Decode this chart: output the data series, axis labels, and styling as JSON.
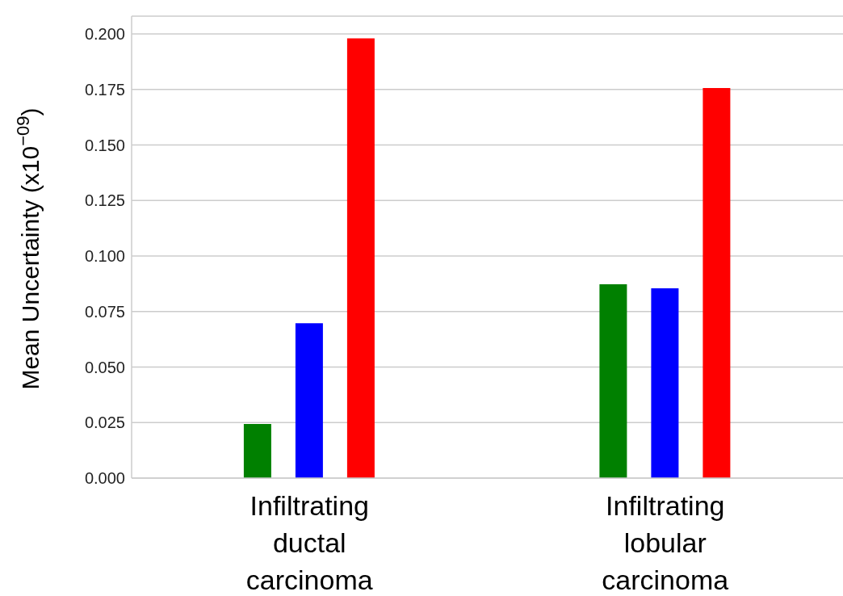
{
  "chart_data": {
    "type": "bar",
    "ylabel": "Mean Uncertainty (x10$^{−09}$)",
    "categories": [
      "Infiltrating ductal carcinoma",
      "Infiltrating lobular carcinoma"
    ],
    "series": [
      {
        "color": "#008000",
        "values": [
          0.0244,
          0.0873
        ]
      },
      {
        "color": "#0000ff",
        "values": [
          0.0697,
          0.0855
        ]
      },
      {
        "color": "#ff0000",
        "values": [
          0.198,
          0.1756
        ]
      }
    ],
    "ylim": [
      0,
      0.208
    ],
    "yticks": [
      {
        "value": 0,
        "label": "0.000"
      },
      {
        "value": 0.025,
        "label": "0.025"
      },
      {
        "value": 0.05,
        "label": "0.050"
      },
      {
        "value": 0.075,
        "label": "0.075"
      },
      {
        "value": 0.1,
        "label": "0.100"
      },
      {
        "value": 0.125,
        "label": "0.125"
      },
      {
        "value": 0.15,
        "label": "0.150"
      },
      {
        "value": 0.175,
        "label": "0.175"
      },
      {
        "value": 0.2,
        "label": "0.200"
      }
    ],
    "grid": "y"
  }
}
